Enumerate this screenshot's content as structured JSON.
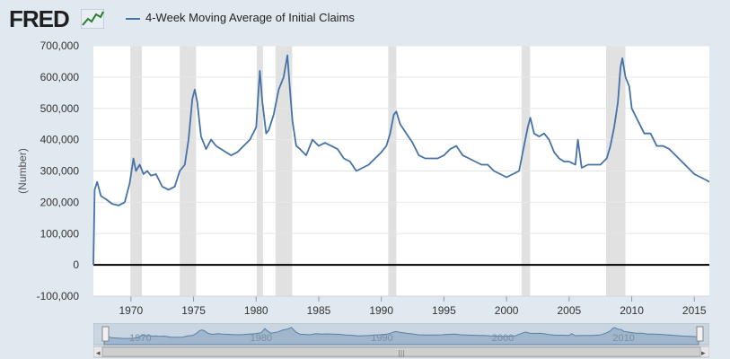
{
  "brand": {
    "logo_text": "FRED",
    "logo_icon": "line-chart-icon"
  },
  "legend": {
    "series_name": "4-Week Moving Average of Initial Claims"
  },
  "colors": {
    "series": "#4572a7",
    "recession": "#e1e1e1",
    "background": "#e1e9f0",
    "plot": "#ffffff"
  },
  "chart_data": {
    "type": "line",
    "title": "",
    "xlabel": "",
    "ylabel": "(Number)",
    "xlim": [
      1967.0,
      2016.2
    ],
    "ylim": [
      -100000,
      700000
    ],
    "x_ticks": [
      "1970",
      "1975",
      "1980",
      "1985",
      "1990",
      "1995",
      "2000",
      "2005",
      "2010",
      "2015"
    ],
    "y_ticks": [
      "-100,000",
      "0",
      "100,000",
      "200,000",
      "300,000",
      "400,000",
      "500,000",
      "600,000",
      "700,000"
    ],
    "grid": true,
    "legend_position": "top-left",
    "recessions": [
      [
        1969.95,
        1970.88
      ],
      [
        1973.9,
        1975.2
      ],
      [
        1980.05,
        1980.55
      ],
      [
        1981.55,
        1982.88
      ],
      [
        1990.55,
        1991.2
      ],
      [
        2001.2,
        2001.88
      ],
      [
        2007.95,
        2009.5
      ]
    ],
    "series": [
      {
        "name": "4-Week Moving Average of Initial Claims",
        "x": [
          1967.0,
          1967.1,
          1967.3,
          1967.6,
          1968.0,
          1968.5,
          1969.0,
          1969.5,
          1969.9,
          1970.2,
          1970.4,
          1970.7,
          1971.0,
          1971.3,
          1971.6,
          1972.0,
          1972.5,
          1973.0,
          1973.5,
          1973.9,
          1974.3,
          1974.6,
          1974.9,
          1975.1,
          1975.3,
          1975.6,
          1976.0,
          1976.4,
          1976.8,
          1977.2,
          1977.6,
          1978.0,
          1978.5,
          1979.0,
          1979.5,
          1980.0,
          1980.3,
          1980.5,
          1980.8,
          1981.0,
          1981.4,
          1981.8,
          1982.2,
          1982.5,
          1982.7,
          1982.9,
          1983.2,
          1983.5,
          1984.0,
          1984.5,
          1985.0,
          1985.5,
          1986.0,
          1986.5,
          1987.0,
          1987.5,
          1988.0,
          1988.5,
          1989.0,
          1989.5,
          1990.0,
          1990.4,
          1990.7,
          1991.0,
          1991.2,
          1991.5,
          1992.0,
          1992.5,
          1993.0,
          1993.5,
          1994.0,
          1994.5,
          1995.0,
          1995.5,
          1996.0,
          1996.5,
          1997.0,
          1997.5,
          1998.0,
          1998.5,
          1999.0,
          1999.5,
          2000.0,
          2000.5,
          2001.0,
          2001.3,
          2001.7,
          2001.9,
          2002.2,
          2002.6,
          2003.0,
          2003.4,
          2003.8,
          2004.2,
          2004.6,
          2005.0,
          2005.5,
          2005.7,
          2006.0,
          2006.5,
          2007.0,
          2007.5,
          2008.0,
          2008.3,
          2008.6,
          2008.9,
          2009.1,
          2009.25,
          2009.5,
          2009.8,
          2010.0,
          2010.5,
          2011.0,
          2011.5,
          2012.0,
          2012.5,
          2013.0,
          2013.5,
          2014.0,
          2014.5,
          2015.0,
          2015.5,
          2016.0,
          2016.2
        ],
        "values": [
          0,
          240000,
          265000,
          220000,
          210000,
          195000,
          190000,
          200000,
          260000,
          340000,
          300000,
          320000,
          290000,
          300000,
          285000,
          290000,
          250000,
          240000,
          250000,
          300000,
          320000,
          400000,
          530000,
          560000,
          520000,
          410000,
          370000,
          400000,
          380000,
          370000,
          360000,
          350000,
          360000,
          380000,
          400000,
          440000,
          620000,
          520000,
          420000,
          430000,
          480000,
          560000,
          600000,
          670000,
          560000,
          460000,
          380000,
          370000,
          350000,
          400000,
          380000,
          390000,
          380000,
          370000,
          340000,
          330000,
          300000,
          310000,
          320000,
          340000,
          360000,
          380000,
          420000,
          480000,
          490000,
          450000,
          420000,
          390000,
          350000,
          340000,
          340000,
          340000,
          350000,
          370000,
          380000,
          350000,
          340000,
          330000,
          320000,
          320000,
          300000,
          290000,
          280000,
          290000,
          300000,
          360000,
          440000,
          470000,
          420000,
          410000,
          420000,
          400000,
          360000,
          340000,
          330000,
          330000,
          320000,
          400000,
          310000,
          320000,
          320000,
          320000,
          340000,
          380000,
          440000,
          520000,
          630000,
          660000,
          600000,
          570000,
          500000,
          460000,
          420000,
          420000,
          380000,
          380000,
          370000,
          350000,
          330000,
          310000,
          290000,
          280000,
          270000,
          265000
        ]
      }
    ]
  },
  "navigator": {
    "labels": [
      "1970",
      "1980",
      "1990",
      "2000",
      "2010"
    ],
    "scroll_left": "◂",
    "scroll_right": "▸",
    "grip": "|||"
  }
}
